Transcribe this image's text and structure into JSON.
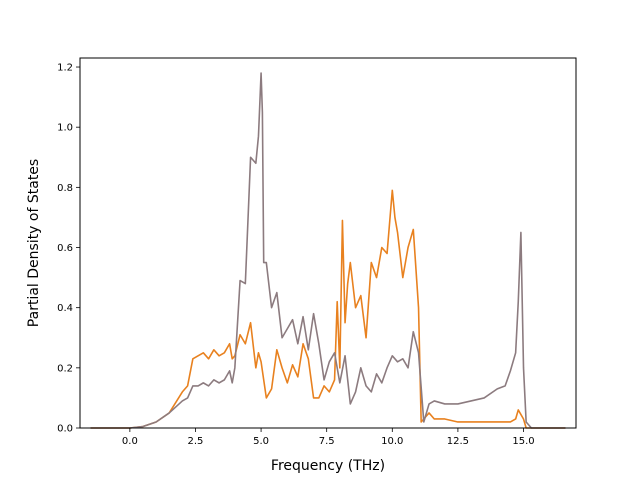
{
  "chart_data": {
    "type": "line",
    "title": "",
    "xlabel": "Frequency (THz)",
    "ylabel": "Partial Density of States",
    "xlim": [
      -1.9,
      17.0
    ],
    "ylim": [
      0.0,
      1.23
    ],
    "xticks": [
      0.0,
      2.5,
      5.0,
      7.5,
      10.0,
      12.5,
      15.0
    ],
    "xtick_labels": [
      "0.0",
      "2.5",
      "5.0",
      "7.5",
      "10.0",
      "12.5",
      "15.0"
    ],
    "yticks": [
      0.0,
      0.2,
      0.4,
      0.6,
      0.8,
      1.0,
      1.2
    ],
    "ytick_labels": [
      "0.0",
      "0.2",
      "0.4",
      "0.6",
      "0.8",
      "1.0",
      "1.2"
    ],
    "grid": false,
    "legend": "none",
    "series": [
      {
        "color": "#e8811f",
        "x": [
          -1.5,
          0.0,
          0.5,
          1.0,
          1.5,
          2.0,
          2.2,
          2.4,
          2.6,
          2.8,
          3.0,
          3.2,
          3.4,
          3.6,
          3.8,
          3.9,
          4.0,
          4.2,
          4.4,
          4.6,
          4.8,
          4.9,
          5.0,
          5.2,
          5.4,
          5.6,
          5.8,
          6.0,
          6.2,
          6.4,
          6.6,
          6.8,
          7.0,
          7.2,
          7.4,
          7.6,
          7.8,
          7.9,
          8.0,
          8.1,
          8.2,
          8.3,
          8.4,
          8.6,
          8.8,
          9.0,
          9.2,
          9.4,
          9.6,
          9.8,
          10.0,
          10.1,
          10.2,
          10.4,
          10.6,
          10.8,
          11.0,
          11.1,
          11.2,
          11.4,
          11.6,
          12.0,
          12.5,
          13.0,
          13.5,
          14.0,
          14.5,
          14.7,
          14.8,
          15.0,
          15.1,
          15.3,
          16.6
        ],
        "y": [
          0.0,
          0.0,
          0.005,
          0.02,
          0.05,
          0.12,
          0.14,
          0.23,
          0.24,
          0.25,
          0.23,
          0.26,
          0.24,
          0.25,
          0.28,
          0.23,
          0.24,
          0.31,
          0.28,
          0.35,
          0.2,
          0.25,
          0.22,
          0.1,
          0.13,
          0.26,
          0.2,
          0.15,
          0.21,
          0.17,
          0.28,
          0.23,
          0.1,
          0.1,
          0.14,
          0.12,
          0.16,
          0.42,
          0.2,
          0.69,
          0.35,
          0.48,
          0.55,
          0.4,
          0.44,
          0.3,
          0.55,
          0.5,
          0.6,
          0.58,
          0.79,
          0.7,
          0.65,
          0.5,
          0.6,
          0.66,
          0.4,
          0.02,
          0.03,
          0.05,
          0.03,
          0.03,
          0.02,
          0.02,
          0.02,
          0.02,
          0.02,
          0.03,
          0.06,
          0.03,
          0.0,
          0.0,
          0.0
        ]
      },
      {
        "color": "#8c7b7f",
        "x": [
          -1.5,
          0.0,
          0.5,
          1.0,
          1.5,
          2.0,
          2.2,
          2.4,
          2.6,
          2.8,
          3.0,
          3.2,
          3.4,
          3.6,
          3.8,
          3.9,
          4.0,
          4.2,
          4.4,
          4.6,
          4.8,
          4.9,
          5.0,
          5.05,
          5.1,
          5.2,
          5.4,
          5.6,
          5.8,
          6.0,
          6.2,
          6.4,
          6.6,
          6.8,
          7.0,
          7.2,
          7.4,
          7.6,
          7.8,
          8.0,
          8.2,
          8.4,
          8.6,
          8.8,
          9.0,
          9.2,
          9.4,
          9.6,
          9.8,
          10.0,
          10.2,
          10.4,
          10.6,
          10.8,
          11.0,
          11.2,
          11.4,
          11.6,
          12.0,
          12.5,
          13.0,
          13.5,
          14.0,
          14.3,
          14.5,
          14.7,
          14.8,
          14.9,
          15.0,
          15.1,
          15.3,
          16.6
        ],
        "y": [
          0.0,
          0.0,
          0.005,
          0.02,
          0.05,
          0.09,
          0.1,
          0.14,
          0.14,
          0.15,
          0.14,
          0.16,
          0.15,
          0.16,
          0.19,
          0.15,
          0.2,
          0.49,
          0.48,
          0.9,
          0.88,
          0.97,
          1.18,
          1.05,
          0.55,
          0.55,
          0.4,
          0.45,
          0.3,
          0.33,
          0.36,
          0.28,
          0.37,
          0.26,
          0.38,
          0.28,
          0.16,
          0.22,
          0.25,
          0.15,
          0.24,
          0.08,
          0.12,
          0.2,
          0.14,
          0.12,
          0.18,
          0.15,
          0.2,
          0.24,
          0.22,
          0.23,
          0.2,
          0.32,
          0.25,
          0.02,
          0.08,
          0.09,
          0.08,
          0.08,
          0.09,
          0.1,
          0.13,
          0.14,
          0.19,
          0.25,
          0.42,
          0.65,
          0.2,
          0.02,
          0.0,
          0.0
        ]
      }
    ]
  }
}
